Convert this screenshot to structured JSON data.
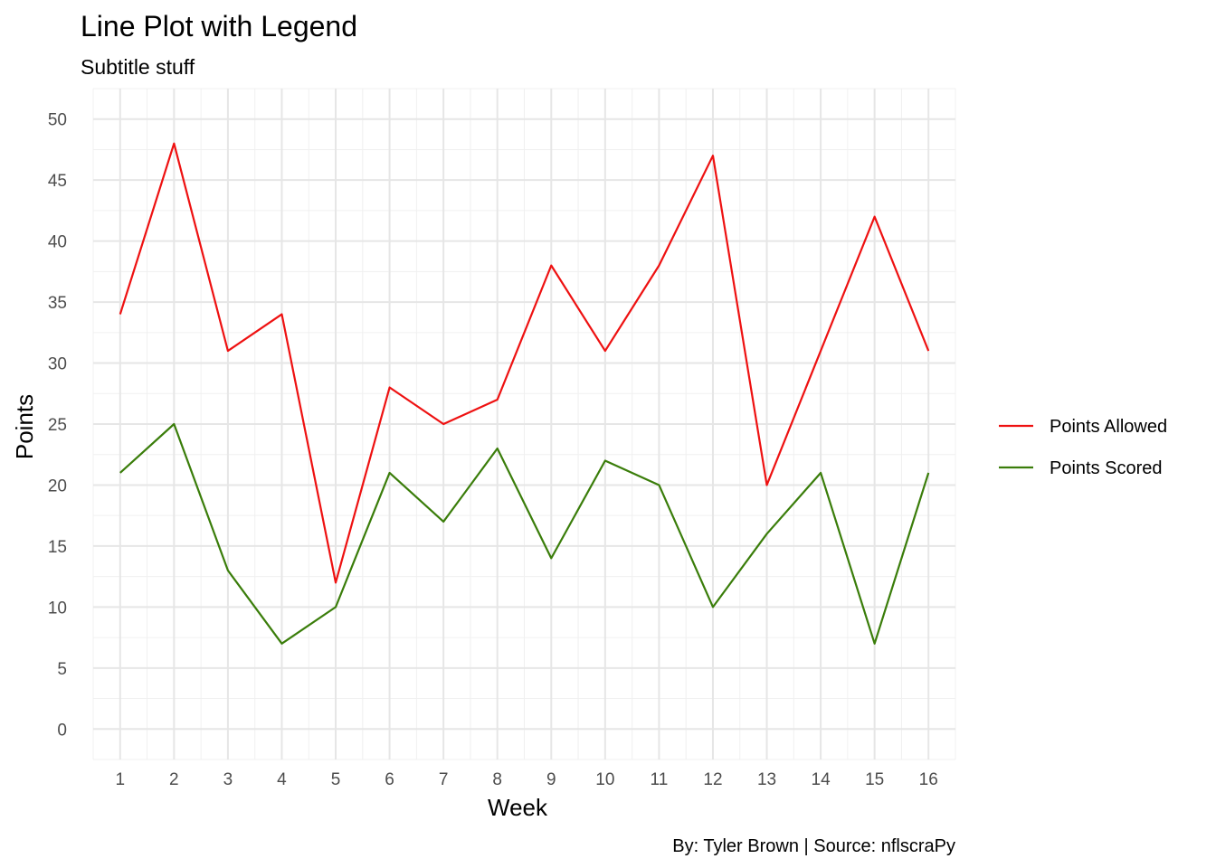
{
  "chart_data": {
    "type": "line",
    "title": "Line Plot with Legend",
    "subtitle": "Subtitle stuff",
    "caption": "By: Tyler Brown | Source: nflscraPy",
    "xlabel": "Week",
    "ylabel": "Points",
    "x": [
      1,
      2,
      3,
      4,
      5,
      6,
      7,
      8,
      9,
      10,
      11,
      12,
      13,
      14,
      15,
      16
    ],
    "xticks": [
      "1",
      "2",
      "3",
      "4",
      "5",
      "6",
      "7",
      "8",
      "9",
      "10",
      "11",
      "12",
      "13",
      "14",
      "15",
      "16"
    ],
    "yticks": [
      "0",
      "5",
      "10",
      "15",
      "20",
      "25",
      "30",
      "35",
      "40",
      "45",
      "50"
    ],
    "xlim": [
      0.5,
      16.5
    ],
    "ylim": [
      -2.5,
      52.5
    ],
    "grid": true,
    "legend_position": "right",
    "series": [
      {
        "name": "Points Allowed",
        "color": "#ee1111",
        "values": [
          34,
          48,
          31,
          34,
          12,
          28,
          25,
          27,
          38,
          31,
          38,
          47,
          20,
          31,
          42,
          31
        ]
      },
      {
        "name": "Points Scored",
        "color": "#3a7d0a",
        "values": [
          21,
          25,
          13,
          7,
          10,
          21,
          17,
          23,
          14,
          22,
          20,
          10,
          16,
          21,
          7,
          21
        ]
      }
    ]
  }
}
